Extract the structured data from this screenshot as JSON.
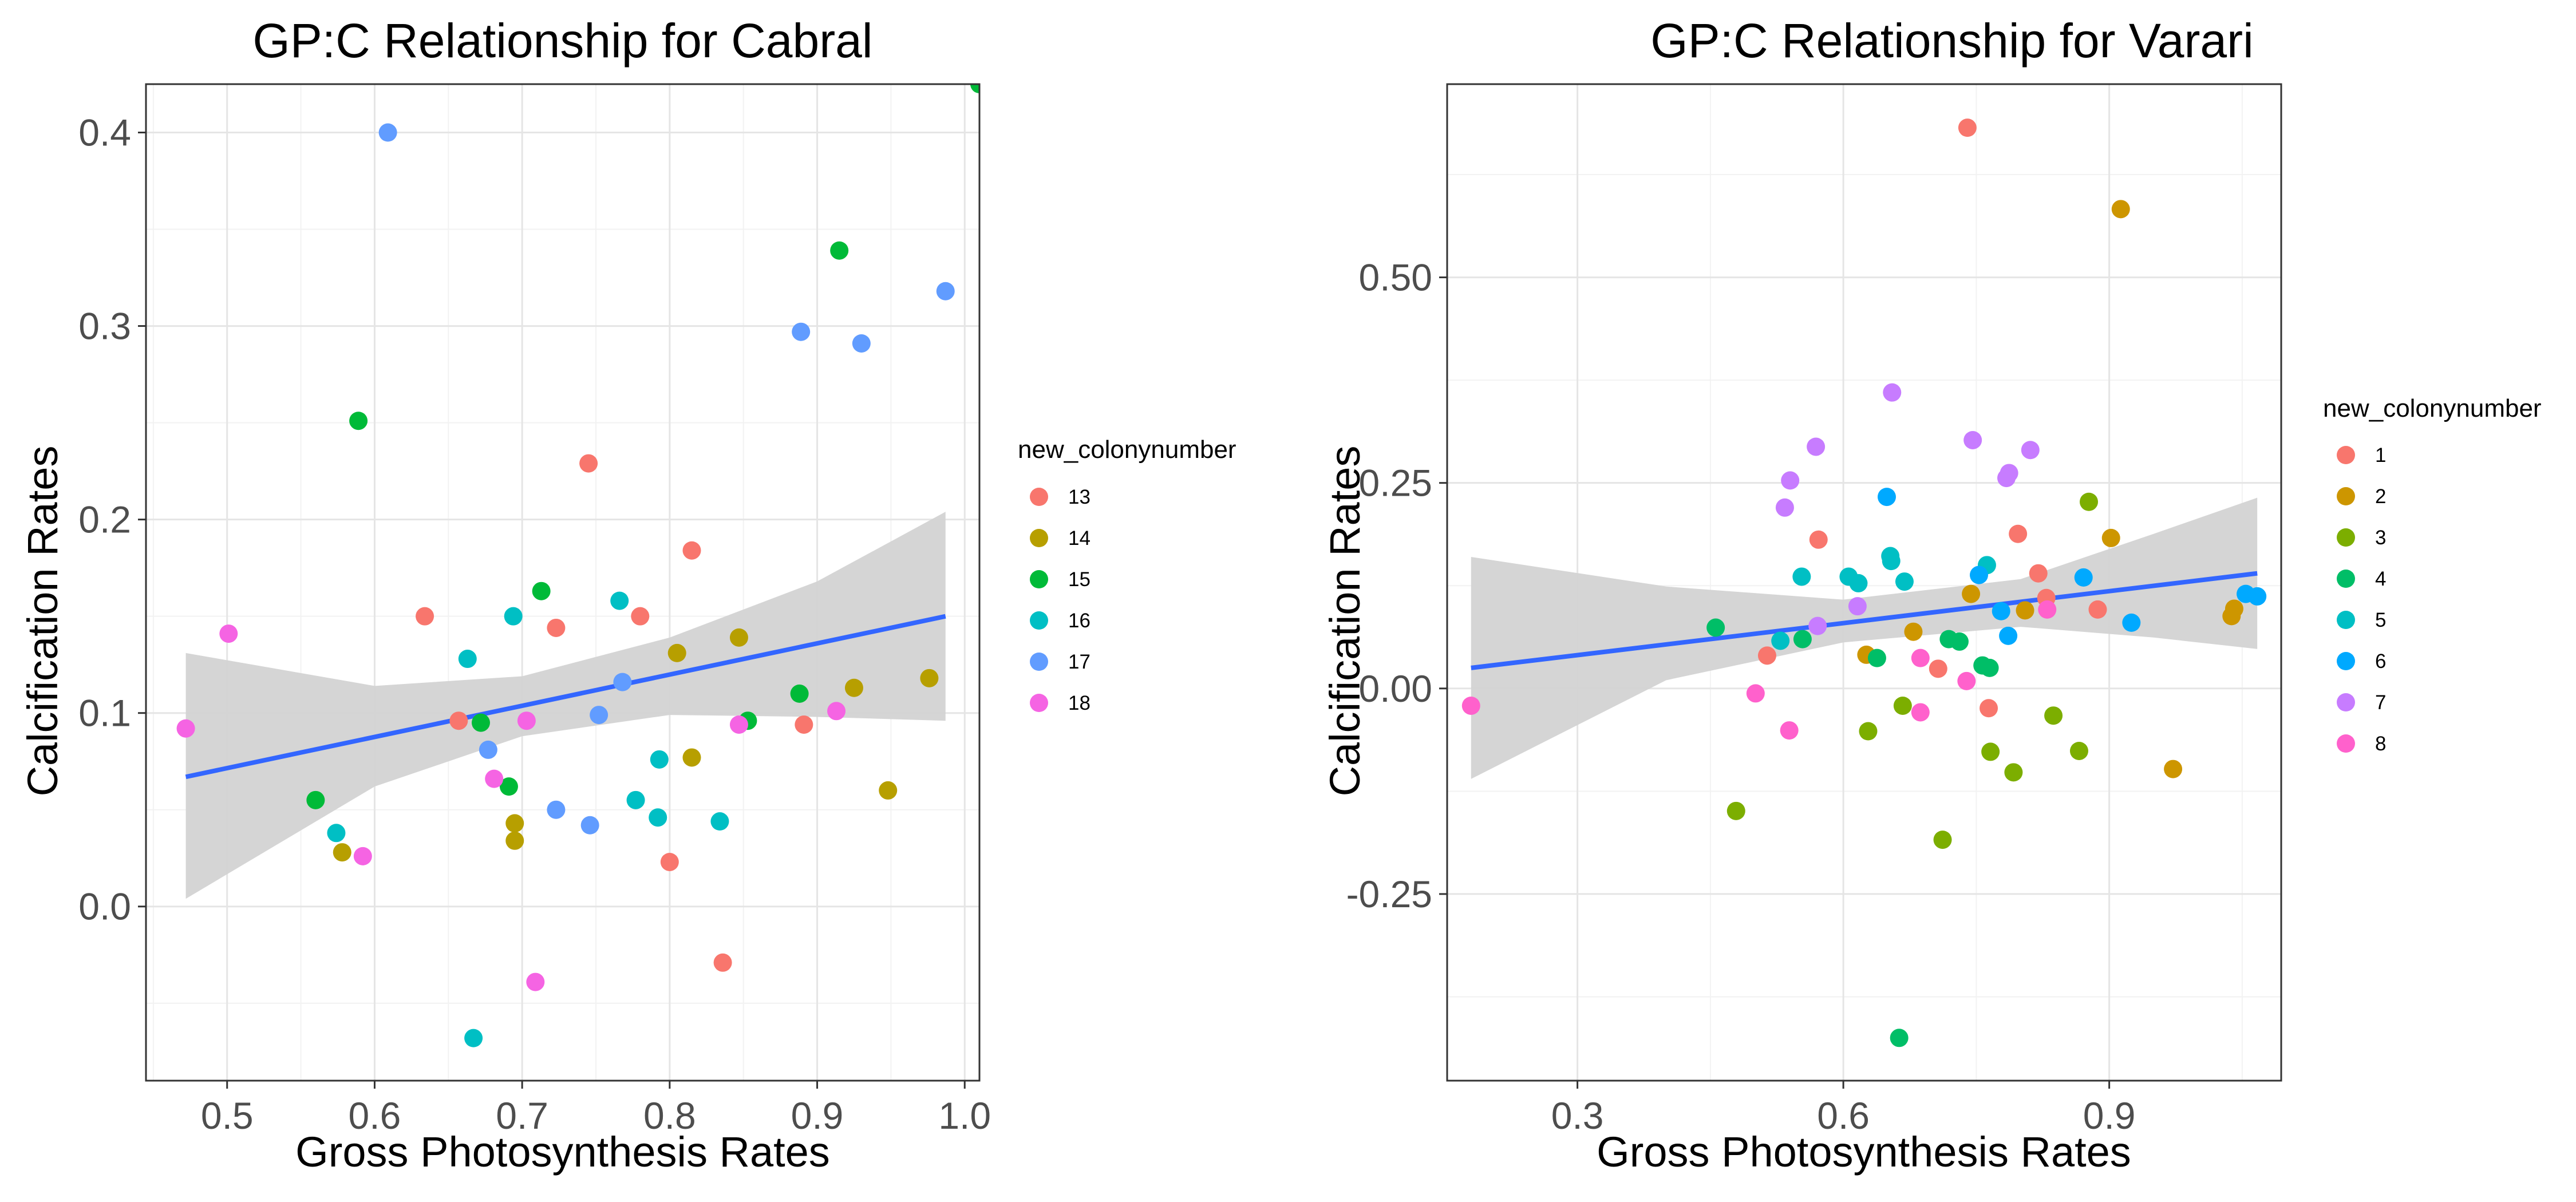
{
  "chart_data": [
    {
      "type": "scatter",
      "title": "GP:C Relationship for Cabral",
      "xlabel": "Gross Photosynthesis Rates",
      "ylabel": "Calcification Rates",
      "xlim": [
        0.445,
        1.01
      ],
      "ylim": [
        -0.09,
        0.425
      ],
      "xticks": [
        0.5,
        0.6,
        0.7,
        0.8,
        0.9,
        1.0
      ],
      "xtick_labels": [
        "0.5",
        "0.6",
        "0.7",
        "0.8",
        "0.9",
        "1.0"
      ],
      "yticks": [
        0.0,
        0.1,
        0.2,
        0.3,
        0.4
      ],
      "ytick_labels": [
        "0.0",
        "0.1",
        "0.2",
        "0.3",
        "0.4"
      ],
      "grid": true,
      "legend": {
        "title": "new_colonynumber",
        "placement": "right",
        "entries": [
          "13",
          "14",
          "15",
          "16",
          "17",
          "18"
        ]
      },
      "trend": {
        "x": [
          0.472,
          0.987
        ],
        "y": [
          0.067,
          0.15
        ],
        "ci_upper": [
          0.131,
          0.114,
          0.119,
          0.139,
          0.168,
          0.204
        ],
        "ci_lower": [
          0.004,
          0.062,
          0.088,
          0.099,
          0.098,
          0.096
        ],
        "ci_x": [
          0.472,
          0.6,
          0.7,
          0.8,
          0.9,
          0.987
        ],
        "color": "#3366ff",
        "band_color": "#d3d3d3"
      },
      "series": [
        {
          "name": "13",
          "color": "#F8766D",
          "points": [
            [
              0.634,
              0.15
            ],
            [
              0.657,
              0.096
            ],
            [
              0.723,
              0.144
            ],
            [
              0.745,
              0.229
            ],
            [
              0.78,
              0.15
            ],
            [
              0.8,
              0.023
            ],
            [
              0.815,
              0.184
            ],
            [
              0.836,
              -0.029
            ],
            [
              0.891,
              0.094
            ]
          ]
        },
        {
          "name": "14",
          "color": "#B79F00",
          "points": [
            [
              0.578,
              0.028
            ],
            [
              0.695,
              0.043
            ],
            [
              0.695,
              0.034
            ],
            [
              0.805,
              0.131
            ],
            [
              0.815,
              0.077
            ],
            [
              0.847,
              0.139
            ],
            [
              0.925,
              0.113
            ],
            [
              0.948,
              0.06
            ],
            [
              0.976,
              0.118
            ]
          ]
        },
        {
          "name": "15",
          "color": "#00BA38",
          "points": [
            [
              0.56,
              0.055
            ],
            [
              0.589,
              0.251
            ],
            [
              0.672,
              0.095
            ],
            [
              0.691,
              0.062
            ],
            [
              0.713,
              0.163
            ],
            [
              0.853,
              0.096
            ],
            [
              0.888,
              0.11
            ],
            [
              0.915,
              0.339
            ],
            [
              1.01,
              0.425
            ]
          ]
        },
        {
          "name": "16",
          "color": "#00BFC4",
          "points": [
            [
              0.574,
              0.038
            ],
            [
              0.663,
              0.128
            ],
            [
              0.667,
              -0.068
            ],
            [
              0.694,
              0.15
            ],
            [
              0.766,
              0.158
            ],
            [
              0.777,
              0.055
            ],
            [
              0.792,
              0.046
            ],
            [
              0.793,
              0.076
            ],
            [
              0.834,
              0.044
            ]
          ]
        },
        {
          "name": "17",
          "color": "#619CFF",
          "points": [
            [
              0.609,
              0.4
            ],
            [
              0.677,
              0.081
            ],
            [
              0.723,
              0.05
            ],
            [
              0.746,
              0.042
            ],
            [
              0.752,
              0.099
            ],
            [
              0.768,
              0.116
            ],
            [
              0.889,
              0.297
            ],
            [
              0.93,
              0.291
            ],
            [
              0.987,
              0.318
            ]
          ]
        },
        {
          "name": "18",
          "color": "#F564E3",
          "points": [
            [
              0.472,
              0.092
            ],
            [
              0.501,
              0.141
            ],
            [
              0.592,
              0.026
            ],
            [
              0.681,
              0.066
            ],
            [
              0.703,
              0.096
            ],
            [
              0.709,
              -0.039
            ],
            [
              0.847,
              0.094
            ],
            [
              0.913,
              0.101
            ]
          ]
        }
      ]
    },
    {
      "type": "scatter",
      "title": "GP:C Relationship for Varari",
      "xlabel": "Gross Photosynthesis Rates",
      "ylabel": "Calcification Rates",
      "xlim": [
        0.153,
        1.094
      ],
      "ylim": [
        -0.477,
        0.735
      ],
      "xticks": [
        0.3,
        0.6,
        0.9
      ],
      "xtick_labels": [
        "0.3",
        "0.6",
        "0.9"
      ],
      "yticks": [
        -0.25,
        0.0,
        0.25,
        0.5
      ],
      "ytick_labels": [
        "-0.25",
        "0.00",
        "0.25",
        "0.50"
      ],
      "grid": true,
      "legend": {
        "title": "new_colonynumber",
        "placement": "right",
        "entries": [
          "1",
          "2",
          "3",
          "4",
          "5",
          "6",
          "7",
          "8"
        ]
      },
      "trend": {
        "x": [
          0.18,
          1.067
        ],
        "y": [
          0.025,
          0.14
        ],
        "ci_upper": [
          0.16,
          0.124,
          0.108,
          0.133,
          0.188,
          0.232
        ],
        "ci_lower": [
          -0.11,
          0.01,
          0.056,
          0.075,
          0.062,
          0.048
        ],
        "ci_x": [
          0.18,
          0.4,
          0.6,
          0.8,
          0.95,
          1.067
        ],
        "color": "#3366ff",
        "band_color": "#d3d3d3"
      },
      "series": [
        {
          "name": "1",
          "color": "#F8766D",
          "points": [
            [
              0.514,
              0.04
            ],
            [
              0.572,
              0.181
            ],
            [
              0.707,
              0.024
            ],
            [
              0.74,
              0.682
            ],
            [
              0.764,
              -0.024
            ],
            [
              0.797,
              0.188
            ],
            [
              0.82,
              0.14
            ],
            [
              0.829,
              0.11
            ],
            [
              0.887,
              0.096
            ]
          ]
        },
        {
          "name": "2",
          "color": "#CD9600",
          "points": [
            [
              0.626,
              0.041
            ],
            [
              0.679,
              0.069
            ],
            [
              0.744,
              0.115
            ],
            [
              0.805,
              0.095
            ],
            [
              0.902,
              0.183
            ],
            [
              0.913,
              0.583
            ],
            [
              0.972,
              -0.098
            ],
            [
              1.038,
              0.088
            ],
            [
              1.041,
              0.097
            ]
          ]
        },
        {
          "name": "3",
          "color": "#7CAE00",
          "points": [
            [
              0.479,
              -0.149
            ],
            [
              0.628,
              -0.052
            ],
            [
              0.667,
              -0.021
            ],
            [
              0.712,
              -0.184
            ],
            [
              0.766,
              -0.077
            ],
            [
              0.792,
              -0.102
            ],
            [
              0.837,
              -0.033
            ],
            [
              0.866,
              -0.076
            ],
            [
              0.877,
              0.227
            ]
          ]
        },
        {
          "name": "4",
          "color": "#00BE67",
          "points": [
            [
              0.456,
              0.074
            ],
            [
              0.554,
              0.06
            ],
            [
              0.638,
              0.037
            ],
            [
              0.663,
              -0.425
            ],
            [
              0.719,
              0.06
            ],
            [
              0.731,
              0.057
            ],
            [
              0.757,
              0.028
            ],
            [
              0.765,
              0.025
            ]
          ]
        },
        {
          "name": "5",
          "color": "#00BFC4",
          "points": [
            [
              0.529,
              0.058
            ],
            [
              0.553,
              0.136
            ],
            [
              0.606,
              0.136
            ],
            [
              0.617,
              0.128
            ],
            [
              0.653,
              0.161
            ],
            [
              0.654,
              0.155
            ],
            [
              0.669,
              0.13
            ],
            [
              0.762,
              0.15
            ]
          ]
        },
        {
          "name": "6",
          "color": "#00A9FF",
          "points": [
            [
              0.649,
              0.233
            ],
            [
              0.753,
              0.138
            ],
            [
              0.778,
              0.094
            ],
            [
              0.786,
              0.064
            ],
            [
              0.871,
              0.135
            ],
            [
              0.925,
              0.08
            ],
            [
              1.054,
              0.115
            ],
            [
              1.067,
              0.112
            ]
          ]
        },
        {
          "name": "7",
          "color": "#C77CFF",
          "points": [
            [
              0.534,
              0.22
            ],
            [
              0.54,
              0.253
            ],
            [
              0.569,
              0.294
            ],
            [
              0.571,
              0.076
            ],
            [
              0.616,
              0.1
            ],
            [
              0.655,
              0.36
            ],
            [
              0.746,
              0.302
            ],
            [
              0.784,
              0.256
            ],
            [
              0.787,
              0.262
            ],
            [
              0.811,
              0.29
            ]
          ]
        },
        {
          "name": "8",
          "color": "#FF61CC",
          "points": [
            [
              0.18,
              -0.021
            ],
            [
              0.501,
              -0.006
            ],
            [
              0.539,
              -0.051
            ],
            [
              0.687,
              -0.029
            ],
            [
              0.687,
              0.037
            ],
            [
              0.739,
              0.009
            ],
            [
              0.83,
              0.096
            ]
          ]
        }
      ]
    }
  ]
}
